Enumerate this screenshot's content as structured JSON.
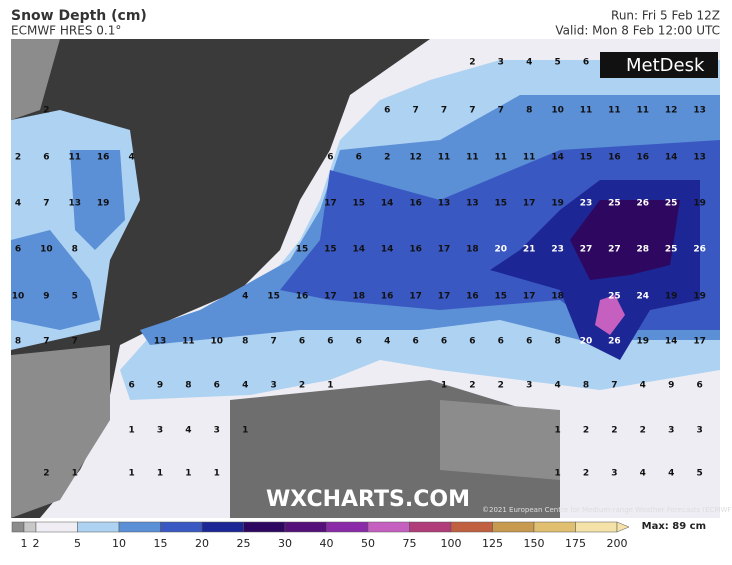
{
  "header": {
    "title": "Snow Depth (cm)",
    "model": "ECMWF HRES 0.1°",
    "run": "Run: Fri 5 Feb 12Z",
    "valid": "Valid: Mon 8 Feb 12:00 UTC"
  },
  "logo": "MetDesk",
  "watermark": "WXCHARTS.COM",
  "credit": "©2021 European Centre for Medium-range Weather Forecasts (ECMWF)",
  "grid_values": [
    [
      null,
      null,
      null,
      null,
      null,
      null,
      null,
      null,
      null,
      null,
      null,
      null,
      null,
      null,
      null,
      null,
      2,
      3,
      4,
      5,
      6,
      null,
      null,
      null,
      null
    ],
    [
      null,
      2,
      null,
      null,
      null,
      null,
      null,
      null,
      null,
      null,
      null,
      null,
      null,
      6,
      7,
      7,
      7,
      7,
      8,
      10,
      11,
      11,
      11,
      12,
      13
    ],
    [
      2,
      6,
      11,
      16,
      4,
      null,
      null,
      null,
      null,
      null,
      null,
      6,
      6,
      2,
      12,
      11,
      11,
      11,
      11,
      14,
      15,
      16,
      16,
      14,
      13
    ],
    [
      4,
      7,
      13,
      19,
      null,
      null,
      null,
      null,
      null,
      null,
      null,
      17,
      15,
      14,
      16,
      13,
      13,
      15,
      17,
      19,
      23,
      25,
      26,
      25,
      19
    ],
    [
      6,
      10,
      8,
      null,
      null,
      null,
      null,
      null,
      null,
      null,
      15,
      15,
      14,
      14,
      16,
      17,
      18,
      20,
      21,
      23,
      27,
      27,
      28,
      25,
      26
    ],
    [
      10,
      9,
      5,
      null,
      null,
      null,
      null,
      null,
      4,
      15,
      16,
      17,
      18,
      16,
      17,
      17,
      16,
      15,
      17,
      18,
      null,
      25,
      24,
      19,
      19
    ],
    [
      8,
      7,
      7,
      null,
      null,
      13,
      11,
      10,
      8,
      7,
      6,
      6,
      6,
      4,
      6,
      6,
      6,
      6,
      6,
      8,
      20,
      26,
      19,
      14,
      17
    ],
    [
      null,
      null,
      null,
      null,
      6,
      9,
      8,
      6,
      4,
      3,
      2,
      1,
      null,
      null,
      null,
      1,
      2,
      2,
      3,
      4,
      8,
      7,
      4,
      9,
      6
    ],
    [
      null,
      null,
      null,
      null,
      1,
      3,
      4,
      3,
      1,
      null,
      null,
      null,
      null,
      null,
      null,
      null,
      null,
      null,
      null,
      1,
      2,
      2,
      2,
      3,
      3
    ],
    [
      null,
      2,
      1,
      null,
      1,
      1,
      1,
      1,
      null,
      null,
      null,
      null,
      null,
      null,
      null,
      null,
      null,
      null,
      null,
      1,
      2,
      3,
      4,
      4,
      5
    ]
  ],
  "legend": {
    "max": "Max: 89 cm",
    "levels": [
      {
        "value": 1,
        "color": "#8c8c8c"
      },
      {
        "value": 2,
        "color": "#c8c8c8"
      },
      {
        "value": 5,
        "color": "#f0eef4"
      },
      {
        "value": 10,
        "color": "#aed2f2"
      },
      {
        "value": 15,
        "color": "#5b8fd6"
      },
      {
        "value": 20,
        "color": "#3a58c2"
      },
      {
        "value": 25,
        "color": "#1c2694"
      },
      {
        "value": 30,
        "color": "#2e0860"
      },
      {
        "value": 40,
        "color": "#55107a"
      },
      {
        "value": 50,
        "color": "#8a2aa8"
      },
      {
        "value": 75,
        "color": "#c560c0"
      },
      {
        "value": 100,
        "color": "#b03c7a"
      },
      {
        "value": 125,
        "color": "#c06040"
      },
      {
        "value": 150,
        "color": "#c89a50"
      },
      {
        "value": 175,
        "color": "#e0c070"
      },
      {
        "value": 200,
        "color": "#f4e2a8"
      }
    ]
  }
}
